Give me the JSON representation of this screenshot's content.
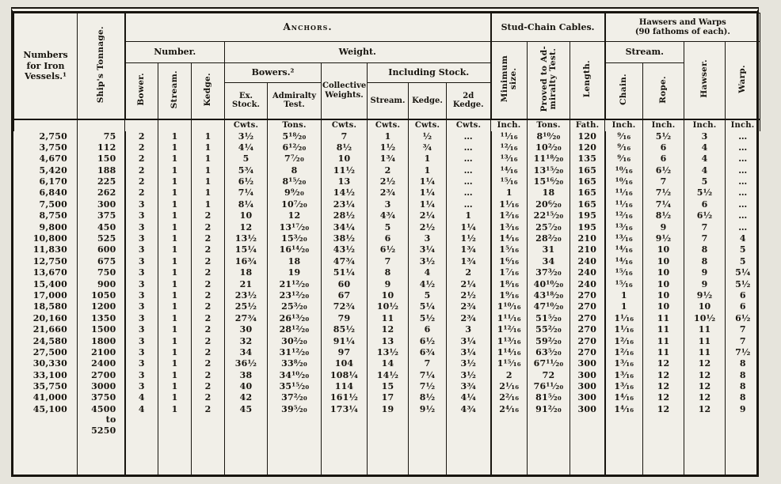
{
  "colors": {
    "paper": "#f1efe8",
    "ink": "#18150f",
    "bg": "#e6e4dc"
  },
  "table": {
    "headers": {
      "numbers": "Numbers\nfor Iron\nVessels.¹",
      "tonnage": "Ship's Tonnage.",
      "anchors": "Anchors.",
      "number_group": "Number.",
      "weight_group": "Weight.",
      "bower": "Bower.",
      "stream": "Stream.",
      "kedge": "Kedge.",
      "bowers2": "Bowers.²",
      "ex_stock": "Ex.\nStock.",
      "admiralty_test": "Admiralty\nTest.",
      "collective": "Collective\nWeights.",
      "including_stock": "Including Stock.",
      "inc_stream": "Stream.",
      "inc_kedge": "Kedge.",
      "inc_2d_kedge": "2d\nKedge.",
      "stud_chain": "Stud-Chain Cables.",
      "min_size": "Minimum\nsize.",
      "proved": "Proved to Ad-\nmiralty Test.",
      "length": "Length.",
      "hawsers_warps": "Hawsers and Warps\n(90 fathoms of each).",
      "hw_stream": "Stream.",
      "hw_chain": "Chain.",
      "hw_rope": "Rope.",
      "hawser": "Hawser.",
      "warp": "Warp."
    },
    "units": [
      "Cwts.",
      "Tons.",
      "Cwts.",
      "Cwts.",
      "Cwts.",
      "Cwts.",
      "Inch.",
      "Tons.",
      "Fath.",
      "Inch.",
      "Inch.",
      "Inch.",
      "Inch."
    ],
    "rows": [
      [
        "2,750",
        "75",
        "2",
        "1",
        "1",
        "3½",
        "5¹⁸⁄₂₀",
        "7",
        "1",
        "½",
        "…",
        "¹¹⁄₁₆",
        "8¹⁰⁄₂₀",
        "120",
        "⁹⁄₁₆",
        "5½",
        "3",
        "…"
      ],
      [
        "3,750",
        "112",
        "2",
        "1",
        "1",
        "4¼",
        "6¹²⁄₂₀",
        "8½",
        "1½",
        "¾",
        "…",
        "¹²⁄₁₆",
        "10²⁄₂₀",
        "120",
        "⁹⁄₁₆",
        "6",
        "4",
        "…"
      ],
      [
        "4,670",
        "150",
        "2",
        "1",
        "1",
        "5",
        "7⁷⁄₂₀",
        "10",
        "1¾",
        "1",
        "…",
        "¹³⁄₁₆",
        "11¹⁸⁄₂₀",
        "135",
        "⁹⁄₁₆",
        "6",
        "4",
        "…"
      ],
      [
        "5,420",
        "188",
        "2",
        "1",
        "1",
        "5¾",
        "8",
        "11½",
        "2",
        "1",
        "…",
        "¹⁴⁄₁₆",
        "13¹⁵⁄₂₀",
        "165",
        "¹⁰⁄₁₆",
        "6½",
        "4",
        "…"
      ],
      [
        "6,170",
        "225",
        "2",
        "1",
        "1",
        "6½",
        "8¹⁵⁄₂₀",
        "13",
        "2½",
        "1¼",
        "…",
        "¹⁵⁄₁₆",
        "15¹⁶⁄₂₀",
        "165",
        "¹⁰⁄₁₆",
        "7",
        "5",
        "…"
      ],
      [
        "6,840",
        "262",
        "2",
        "1",
        "1",
        "7¼",
        "9⁹⁄₂₀",
        "14½",
        "2¾",
        "1¼",
        "…",
        "1",
        "18",
        "165",
        "¹¹⁄₁₆",
        "7½",
        "5½",
        "…"
      ],
      [
        "7,500",
        "300",
        "3",
        "1",
        "1",
        "8¼",
        "10⁷⁄₂₀",
        "23¼",
        "3",
        "1¼",
        "…",
        "1¹⁄₁₆",
        "20⁶⁄₂₀",
        "165",
        "¹¹⁄₁₆",
        "7¼",
        "6",
        "…"
      ],
      [
        "8,750",
        "375",
        "3",
        "1",
        "2",
        "10",
        "12",
        "28½",
        "4¾",
        "2¼",
        "1",
        "1²⁄₁₆",
        "22¹⁵⁄₂₀",
        "195",
        "¹²⁄₁₆",
        "8½",
        "6½",
        "…"
      ],
      [
        "9,800",
        "450",
        "3",
        "1",
        "2",
        "12",
        "13¹⁷⁄₂₀",
        "34¼",
        "5",
        "2½",
        "1¼",
        "1³⁄₁₆",
        "25⁷⁄₂₀",
        "195",
        "¹³⁄₁₆",
        "9",
        "7",
        "…"
      ],
      [
        "10,800",
        "525",
        "3",
        "1",
        "2",
        "13½",
        "15³⁄₂₀",
        "38½",
        "6",
        "3",
        "1½",
        "1⁴⁄₁₆",
        "28²⁄₂₀",
        "210",
        "¹³⁄₁₆",
        "9½",
        "7",
        "4"
      ],
      [
        "11,830",
        "600",
        "3",
        "1",
        "2",
        "15¼",
        "16¹⁴⁄₂₀",
        "43½",
        "6½",
        "3¼",
        "1¾",
        "1⁵⁄₁₆",
        "31",
        "210",
        "¹⁴⁄₁₆",
        "10",
        "8",
        "5"
      ],
      [
        "12,750",
        "675",
        "3",
        "1",
        "2",
        "16¾",
        "18",
        "47¾",
        "7",
        "3½",
        "1¾",
        "1⁶⁄₁₆",
        "34",
        "240",
        "¹⁴⁄₁₆",
        "10",
        "8",
        "5"
      ],
      [
        "13,670",
        "750",
        "3",
        "1",
        "2",
        "18",
        "19",
        "51¼",
        "8",
        "4",
        "2",
        "1⁷⁄₁₆",
        "37³⁄₂₀",
        "240",
        "¹⁵⁄₁₆",
        "10",
        "9",
        "5¼"
      ],
      [
        "15,400",
        "900",
        "3",
        "1",
        "2",
        "21",
        "21¹²⁄₂₀",
        "60",
        "9",
        "4½",
        "2¼",
        "1⁸⁄₁₆",
        "40¹⁰⁄₂₀",
        "240",
        "¹⁵⁄₁₆",
        "10",
        "9",
        "5½"
      ],
      [
        "17,000",
        "1050",
        "3",
        "1",
        "2",
        "23½",
        "23¹²⁄₂₀",
        "67",
        "10",
        "5",
        "2½",
        "1⁹⁄₁₆",
        "43¹⁸⁄₂₀",
        "270",
        "1",
        "10",
        "9½",
        "6"
      ],
      [
        "18,580",
        "1200",
        "3",
        "1",
        "2",
        "25½",
        "25³⁄₂₀",
        "72¾",
        "10½",
        "5¼",
        "2¾",
        "1¹⁰⁄₁₆",
        "47¹⁰⁄₂₀",
        "270",
        "1",
        "10",
        "10",
        "6"
      ],
      [
        "20,160",
        "1350",
        "3",
        "1",
        "2",
        "27¾",
        "26¹³⁄₂₀",
        "79",
        "11",
        "5½",
        "2¾",
        "1¹¹⁄₁₆",
        "51⁵⁄₂₀",
        "270",
        "1¹⁄₁₆",
        "11",
        "10½",
        "6½"
      ],
      [
        "21,660",
        "1500",
        "3",
        "1",
        "2",
        "30",
        "28¹²⁄₂₀",
        "85½",
        "12",
        "6",
        "3",
        "1¹²⁄₁₆",
        "55²⁄₂₀",
        "270",
        "1¹⁄₁₆",
        "11",
        "11",
        "7"
      ],
      [
        "24,580",
        "1800",
        "3",
        "1",
        "2",
        "32",
        "30²⁄₂₀",
        "91¼",
        "13",
        "6½",
        "3¼",
        "1¹³⁄₁₆",
        "59²⁄₂₀",
        "270",
        "1²⁄₁₆",
        "11",
        "11",
        "7"
      ],
      [
        "27,500",
        "2100",
        "3",
        "1",
        "2",
        "34",
        "31¹²⁄₂₀",
        "97",
        "13½",
        "6¾",
        "3¼",
        "1¹⁴⁄₁₆",
        "63⁵⁄₂₀",
        "270",
        "1²⁄₁₆",
        "11",
        "11",
        "7½"
      ],
      [
        "30,330",
        "2400",
        "3",
        "1",
        "2",
        "36½",
        "33⁸⁄₂₀",
        "104",
        "14",
        "7",
        "3½",
        "1¹⁵⁄₁₆",
        "67¹¹⁄₂₀",
        "300",
        "1³⁄₁₆",
        "12",
        "12",
        "8"
      ],
      [
        "33,100",
        "2700",
        "3",
        "1",
        "2",
        "38",
        "34¹⁰⁄₂₀",
        "108¼",
        "14½",
        "7¼",
        "3½",
        "2",
        "72",
        "300",
        "1³⁄₁₆",
        "12",
        "12",
        "8"
      ],
      [
        "35,750",
        "3000",
        "3",
        "1",
        "2",
        "40",
        "35¹⁵⁄₂₀",
        "114",
        "15",
        "7½",
        "3¾",
        "2¹⁄₁₆",
        "76¹¹⁄₂₀",
        "300",
        "1³⁄₁₆",
        "12",
        "12",
        "8"
      ],
      [
        "41,000",
        "3750",
        "4",
        "1",
        "2",
        "42",
        "37²⁄₂₀",
        "161½",
        "17",
        "8½",
        "4¼",
        "2²⁄₁₆",
        "81⁵⁄₂₀",
        "300",
        "1⁴⁄₁₆",
        "12",
        "12",
        "8"
      ],
      [
        "45,100",
        "4500\nto\n5250",
        "4",
        "1",
        "2",
        "45",
        "39⁵⁄₂₀",
        "173¼",
        "19",
        "9½",
        "4¾",
        "2⁴⁄₁₆",
        "91²⁄₂₀",
        "300",
        "1⁴⁄₁₆",
        "12",
        "12",
        "9"
      ]
    ]
  }
}
